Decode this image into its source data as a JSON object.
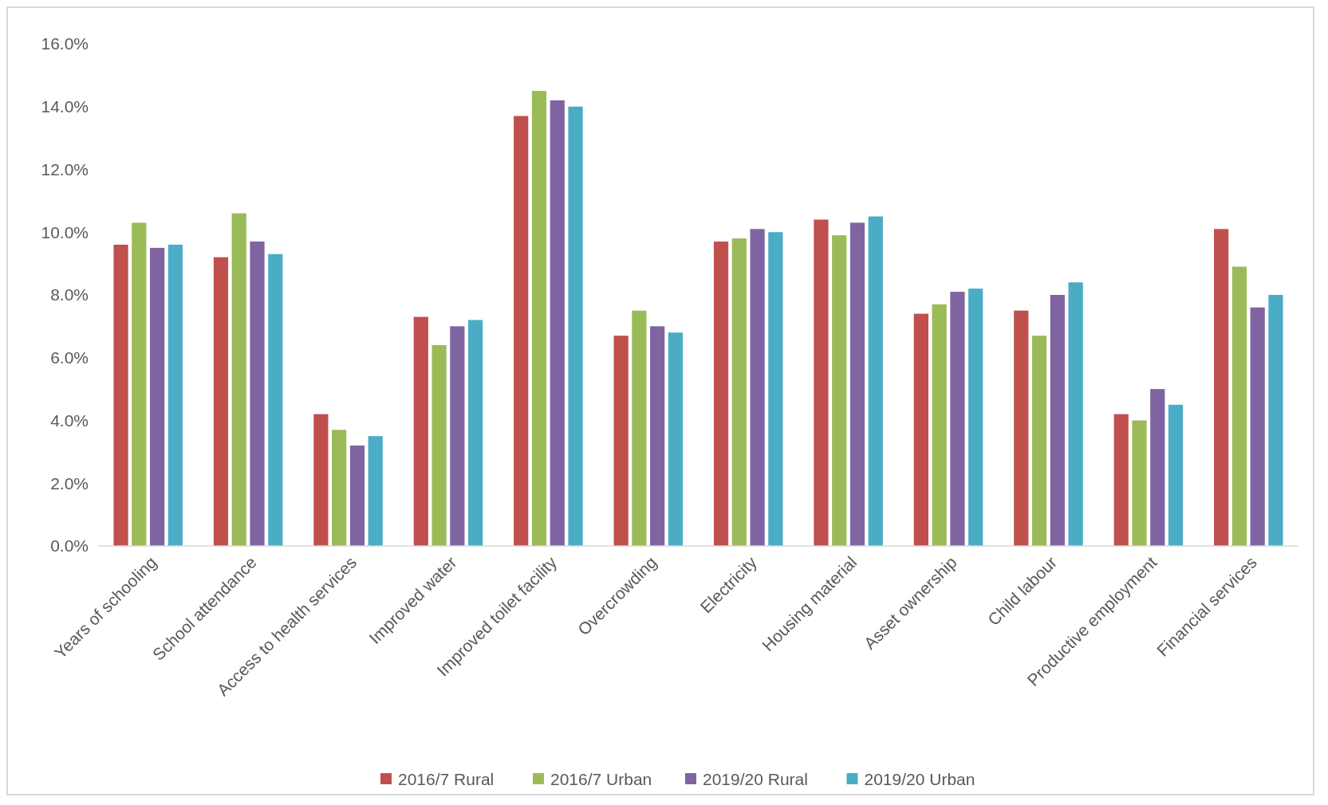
{
  "chart_data": {
    "type": "bar",
    "categories": [
      "Years of schooling",
      "School attendance",
      "Access to health services",
      "Improved water",
      "Improved toilet facility",
      "Overcrowding",
      "Electricity",
      "Housing material",
      "Asset ownership",
      "Child labour",
      "Productive employment",
      "Financial services"
    ],
    "series": [
      {
        "name": "2016/7 Rural",
        "color": "#c0504d",
        "values": [
          9.6,
          9.2,
          4.2,
          7.3,
          13.7,
          6.7,
          9.7,
          10.4,
          7.4,
          7.5,
          4.2,
          10.1
        ]
      },
      {
        "name": "2016/7 Urban",
        "color": "#9bbb59",
        "values": [
          10.3,
          10.6,
          3.7,
          6.4,
          14.5,
          7.5,
          9.8,
          9.9,
          7.7,
          6.7,
          4.0,
          8.9
        ]
      },
      {
        "name": "2019/20 Rural",
        "color": "#8064a2",
        "values": [
          9.5,
          9.7,
          3.2,
          7.0,
          14.2,
          7.0,
          10.1,
          10.3,
          8.1,
          8.0,
          5.0,
          7.6
        ]
      },
      {
        "name": "2019/20 Urban",
        "color": "#4bacc6",
        "values": [
          9.6,
          9.3,
          3.5,
          7.2,
          14.0,
          6.8,
          10.0,
          10.5,
          8.2,
          8.4,
          4.5,
          8.0
        ]
      }
    ],
    "ylim": [
      0,
      16
    ],
    "yticks": [
      {
        "value": 0,
        "label": "0.0%"
      },
      {
        "value": 2,
        "label": "2.0%"
      },
      {
        "value": 4,
        "label": "4.0%"
      },
      {
        "value": 6,
        "label": "6.0%"
      },
      {
        "value": 8,
        "label": "8.0%"
      },
      {
        "value": 10,
        "label": "10.0%"
      },
      {
        "value": 12,
        "label": "12.0%"
      },
      {
        "value": 14,
        "label": "14.0%"
      },
      {
        "value": 16,
        "label": "16.0%"
      }
    ],
    "grid": false,
    "legend": "bottom"
  }
}
